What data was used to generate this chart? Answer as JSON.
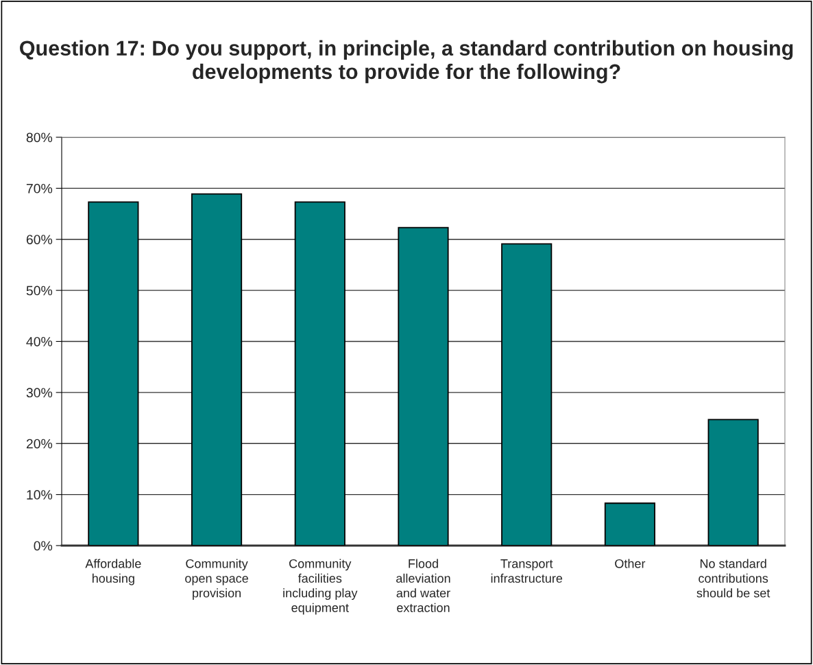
{
  "chart_data": {
    "type": "bar",
    "title": "Question 17: Do you support, in principle, a standard contribution on housing developments to provide for the following?",
    "categories": [
      "Affordable\nhousing",
      "Community\nopen space\nprovision",
      "Community\nfacilities\nincluding play\nequipment",
      "Flood\nalleviation\nand water\nextraction",
      "Transport\ninfrastructure",
      "Other",
      "No standard\ncontributions\nshould be set"
    ],
    "values": [
      67.3,
      68.9,
      67.3,
      62.3,
      59.1,
      8.3,
      24.7
    ],
    "color": "#008080",
    "ylim": [
      0,
      80
    ],
    "yticks": [
      {
        "value": 0,
        "label": "0%"
      },
      {
        "value": 10,
        "label": "10%"
      },
      {
        "value": 20,
        "label": "20%"
      },
      {
        "value": 30,
        "label": "30%"
      },
      {
        "value": 40,
        "label": "40%"
      },
      {
        "value": 50,
        "label": "50%"
      },
      {
        "value": 60,
        "label": "60%"
      },
      {
        "value": 70,
        "label": "70%"
      },
      {
        "value": 80,
        "label": "80%"
      }
    ],
    "grid": "y",
    "legend": false
  }
}
